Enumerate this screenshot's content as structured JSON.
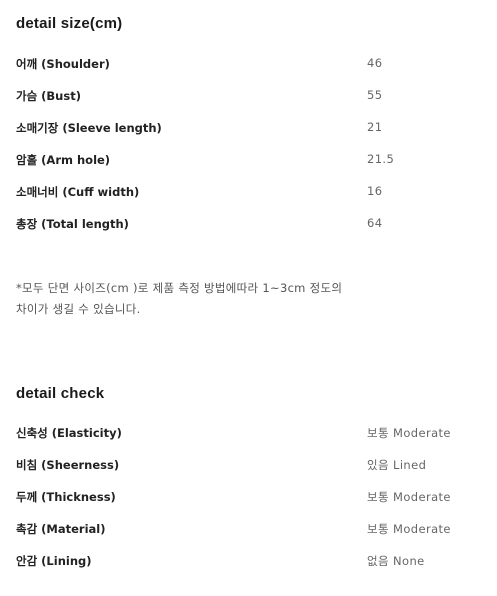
{
  "size": {
    "title": "detail size(cm)",
    "rows": [
      {
        "label": "어깨 (Shoulder)",
        "value": "46"
      },
      {
        "label": "가슴 (Bust)",
        "value": "55"
      },
      {
        "label": "소매기장 (Sleeve length)",
        "value": "21"
      },
      {
        "label": "암홀 (Arm hole)",
        "value": "21.5"
      },
      {
        "label": "소매너비 (Cuff width)",
        "value": "16"
      },
      {
        "label": "총장 (Total length)",
        "value": "64"
      }
    ]
  },
  "note": {
    "line1": "*모두 단면 사이즈(cm )로 제품 측정 방법에따라 1~3cm 정도의",
    "line2": "차이가 생길 수 있습니다."
  },
  "check": {
    "title": "detail check",
    "rows": [
      {
        "label": "신축성 (Elasticity)",
        "value": "보통 Moderate"
      },
      {
        "label": "비침 (Sheerness)",
        "value": "있음 Lined"
      },
      {
        "label": "두께 (Thickness)",
        "value": "보통 Moderate"
      },
      {
        "label": "촉감 (Material)",
        "value": "보통 Moderate"
      },
      {
        "label": "안감 (Lining)",
        "value": "없음 None"
      }
    ]
  }
}
